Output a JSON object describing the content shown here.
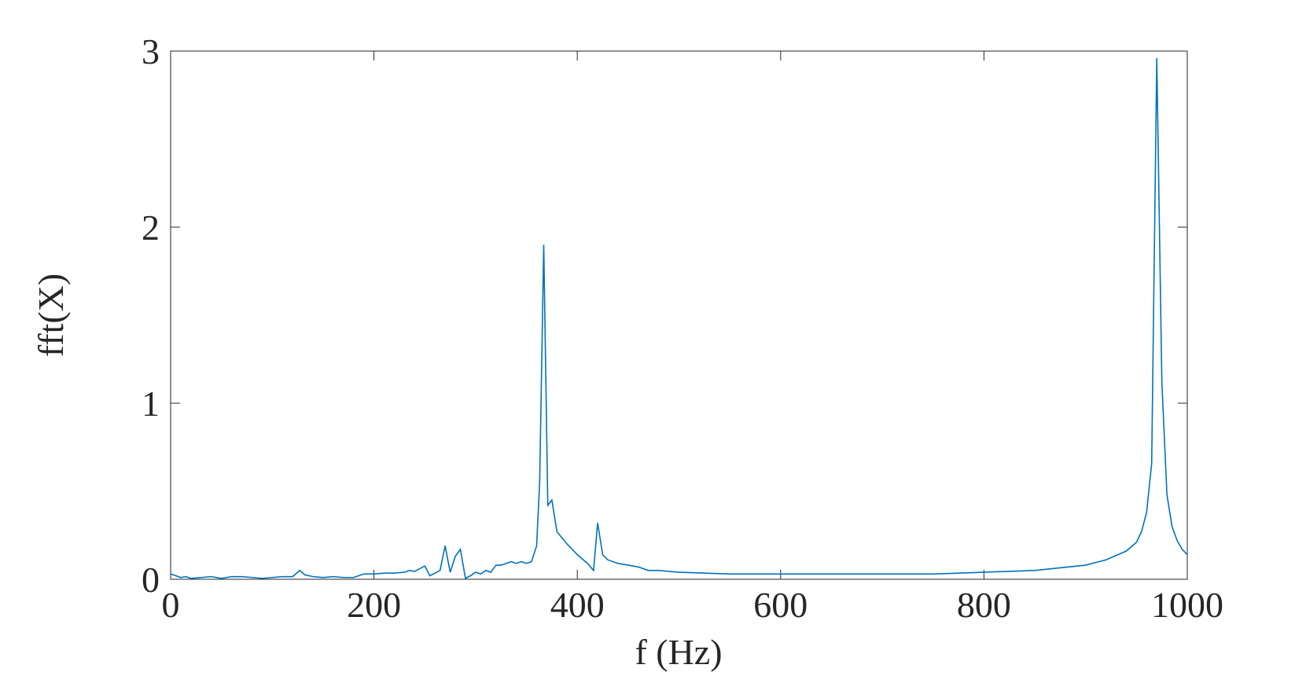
{
  "chart_data": {
    "type": "line",
    "xlabel": "f (Hz)",
    "ylabel": "fft(X)",
    "x": [
      0,
      5,
      10,
      15,
      20,
      30,
      40,
      50,
      60,
      70,
      80,
      90,
      100,
      110,
      120,
      127,
      132,
      140,
      150,
      160,
      170,
      180,
      190,
      195,
      200,
      210,
      220,
      230,
      235,
      240,
      245,
      250,
      255,
      260,
      265,
      270,
      275,
      280,
      285,
      290,
      295,
      300,
      305,
      310,
      315,
      320,
      325,
      330,
      335,
      340,
      345,
      350,
      355,
      360,
      363,
      367,
      371,
      375,
      380,
      390,
      400,
      410,
      416,
      420,
      425,
      430,
      440,
      450,
      460,
      470,
      480,
      500,
      550,
      600,
      650,
      700,
      750,
      800,
      850,
      900,
      920,
      940,
      950,
      955,
      960,
      965,
      970,
      975,
      980,
      985,
      990,
      995,
      1000
    ],
    "series": [
      {
        "color": "#0072bd",
        "values": [
          0.03,
          0.02,
          0.01,
          0.015,
          0.005,
          0.01,
          0.015,
          0.005,
          0.015,
          0.015,
          0.01,
          0.005,
          0.01,
          0.015,
          0.015,
          0.05,
          0.025,
          0.015,
          0.01,
          0.015,
          0.01,
          0.01,
          0.03,
          0.03,
          0.03,
          0.035,
          0.035,
          0.04,
          0.05,
          0.045,
          0.06,
          0.075,
          0.02,
          0.035,
          0.05,
          0.19,
          0.04,
          0.13,
          0.17,
          0.005,
          0.02,
          0.04,
          0.03,
          0.05,
          0.04,
          0.08,
          0.08,
          0.09,
          0.1,
          0.09,
          0.1,
          0.09,
          0.1,
          0.19,
          0.55,
          1.9,
          0.42,
          0.45,
          0.27,
          0.2,
          0.14,
          0.09,
          0.05,
          0.32,
          0.14,
          0.11,
          0.09,
          0.08,
          0.07,
          0.05,
          0.05,
          0.04,
          0.03,
          0.03,
          0.03,
          0.03,
          0.03,
          0.04,
          0.05,
          0.08,
          0.11,
          0.16,
          0.21,
          0.27,
          0.38,
          0.66,
          2.96,
          1.12,
          0.48,
          0.3,
          0.22,
          0.17,
          0.14
        ]
      }
    ],
    "xlim": [
      0,
      1000
    ],
    "xticks": [
      0,
      200,
      400,
      600,
      800,
      1000
    ],
    "ylim": [
      0,
      3
    ],
    "yticks": [
      0,
      1,
      2,
      3
    ]
  }
}
